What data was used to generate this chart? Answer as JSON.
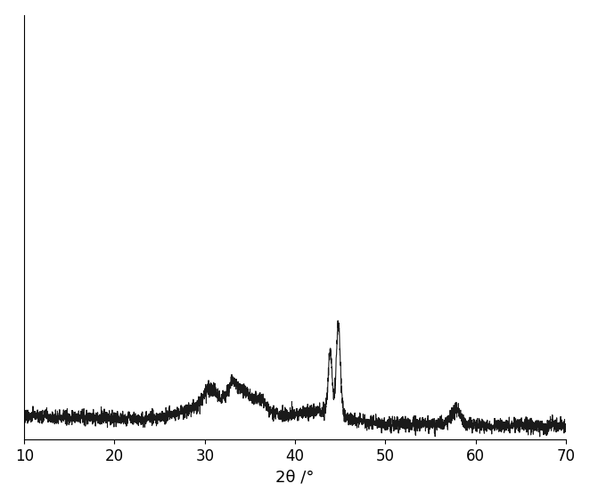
{
  "xlim": [
    10,
    70
  ],
  "ylim_factor": 3.5,
  "xlabel": "2θ /°",
  "xlabel_fontsize": 13,
  "tick_fontsize": 12,
  "line_color": "#1a1a1a",
  "line_width": 0.8,
  "background_color": "#ffffff",
  "figsize": [
    6.62,
    5.61
  ],
  "dpi": 100,
  "noise_seed": 77,
  "noise_amplitude": 12
}
